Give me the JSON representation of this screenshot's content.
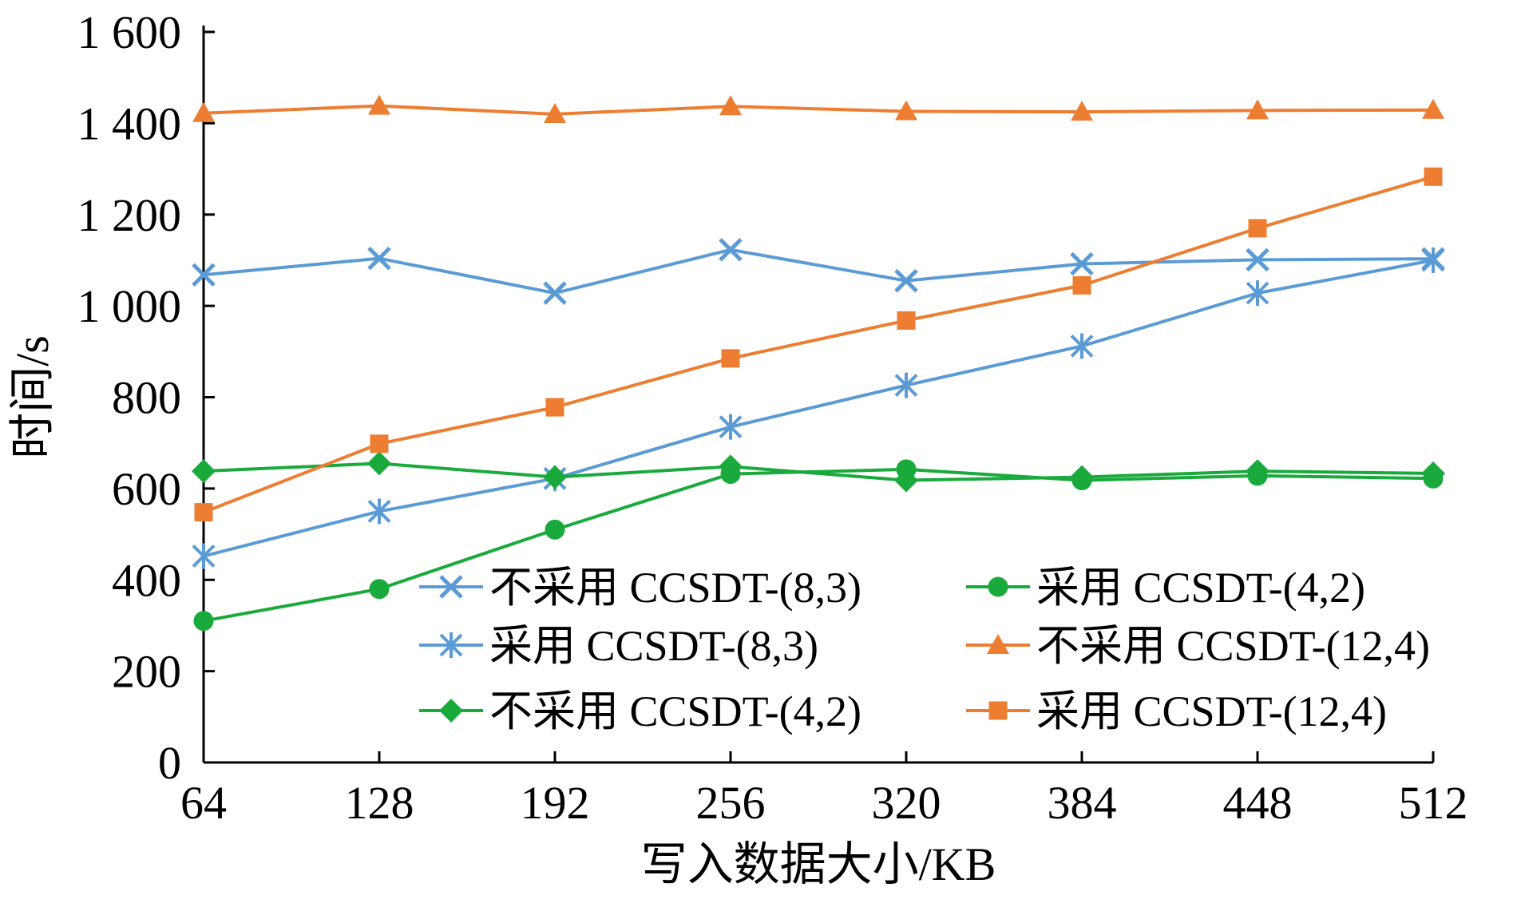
{
  "chart_data": {
    "type": "line",
    "title": "",
    "xlabel": "写入数据大小/KB",
    "ylabel": "时间/s",
    "categories": [
      "64",
      "128",
      "192",
      "256",
      "320",
      "384",
      "448",
      "512"
    ],
    "ylim": [
      0,
      1600
    ],
    "yticks": [
      "0",
      "200",
      "400",
      "600",
      "800",
      "1 000",
      "1 200",
      "1 400",
      "1 600"
    ],
    "ytick_values": [
      0,
      200,
      400,
      600,
      800,
      1000,
      1200,
      1400,
      1600
    ],
    "grid": false,
    "legend_position": "bottom-right",
    "series": [
      {
        "name": "不采用 CCSDT-(8,3)",
        "color": "#5B9BD5",
        "marker": "x",
        "values": [
          1068,
          1104,
          1028,
          1123,
          1055,
          1092,
          1101,
          1103
        ]
      },
      {
        "name": "采用 CCSDT-(8,3)",
        "color": "#5B9BD5",
        "marker": "asterisk",
        "values": [
          452,
          550,
          622,
          735,
          826,
          912,
          1028,
          1100
        ]
      },
      {
        "name": "不采用 CCSDT-(4,2)",
        "color": "#1AAA3C",
        "marker": "diamond",
        "values": [
          638,
          655,
          625,
          648,
          618,
          625,
          638,
          633
        ]
      },
      {
        "name": "采用 CCSDT-(4,2)",
        "color": "#1AAA3C",
        "marker": "circle",
        "values": [
          310,
          380,
          510,
          632,
          642,
          618,
          628,
          622
        ]
      },
      {
        "name": "不采用 CCSDT-(12,4)",
        "color": "#ED7D31",
        "marker": "triangle",
        "values": [
          1422,
          1438,
          1420,
          1437,
          1426,
          1425,
          1428,
          1429
        ]
      },
      {
        "name": "采用 CCSDT-(12,4)",
        "color": "#ED7D31",
        "marker": "square",
        "values": [
          548,
          698,
          778,
          885,
          968,
          1045,
          1170,
          1283
        ]
      }
    ]
  }
}
